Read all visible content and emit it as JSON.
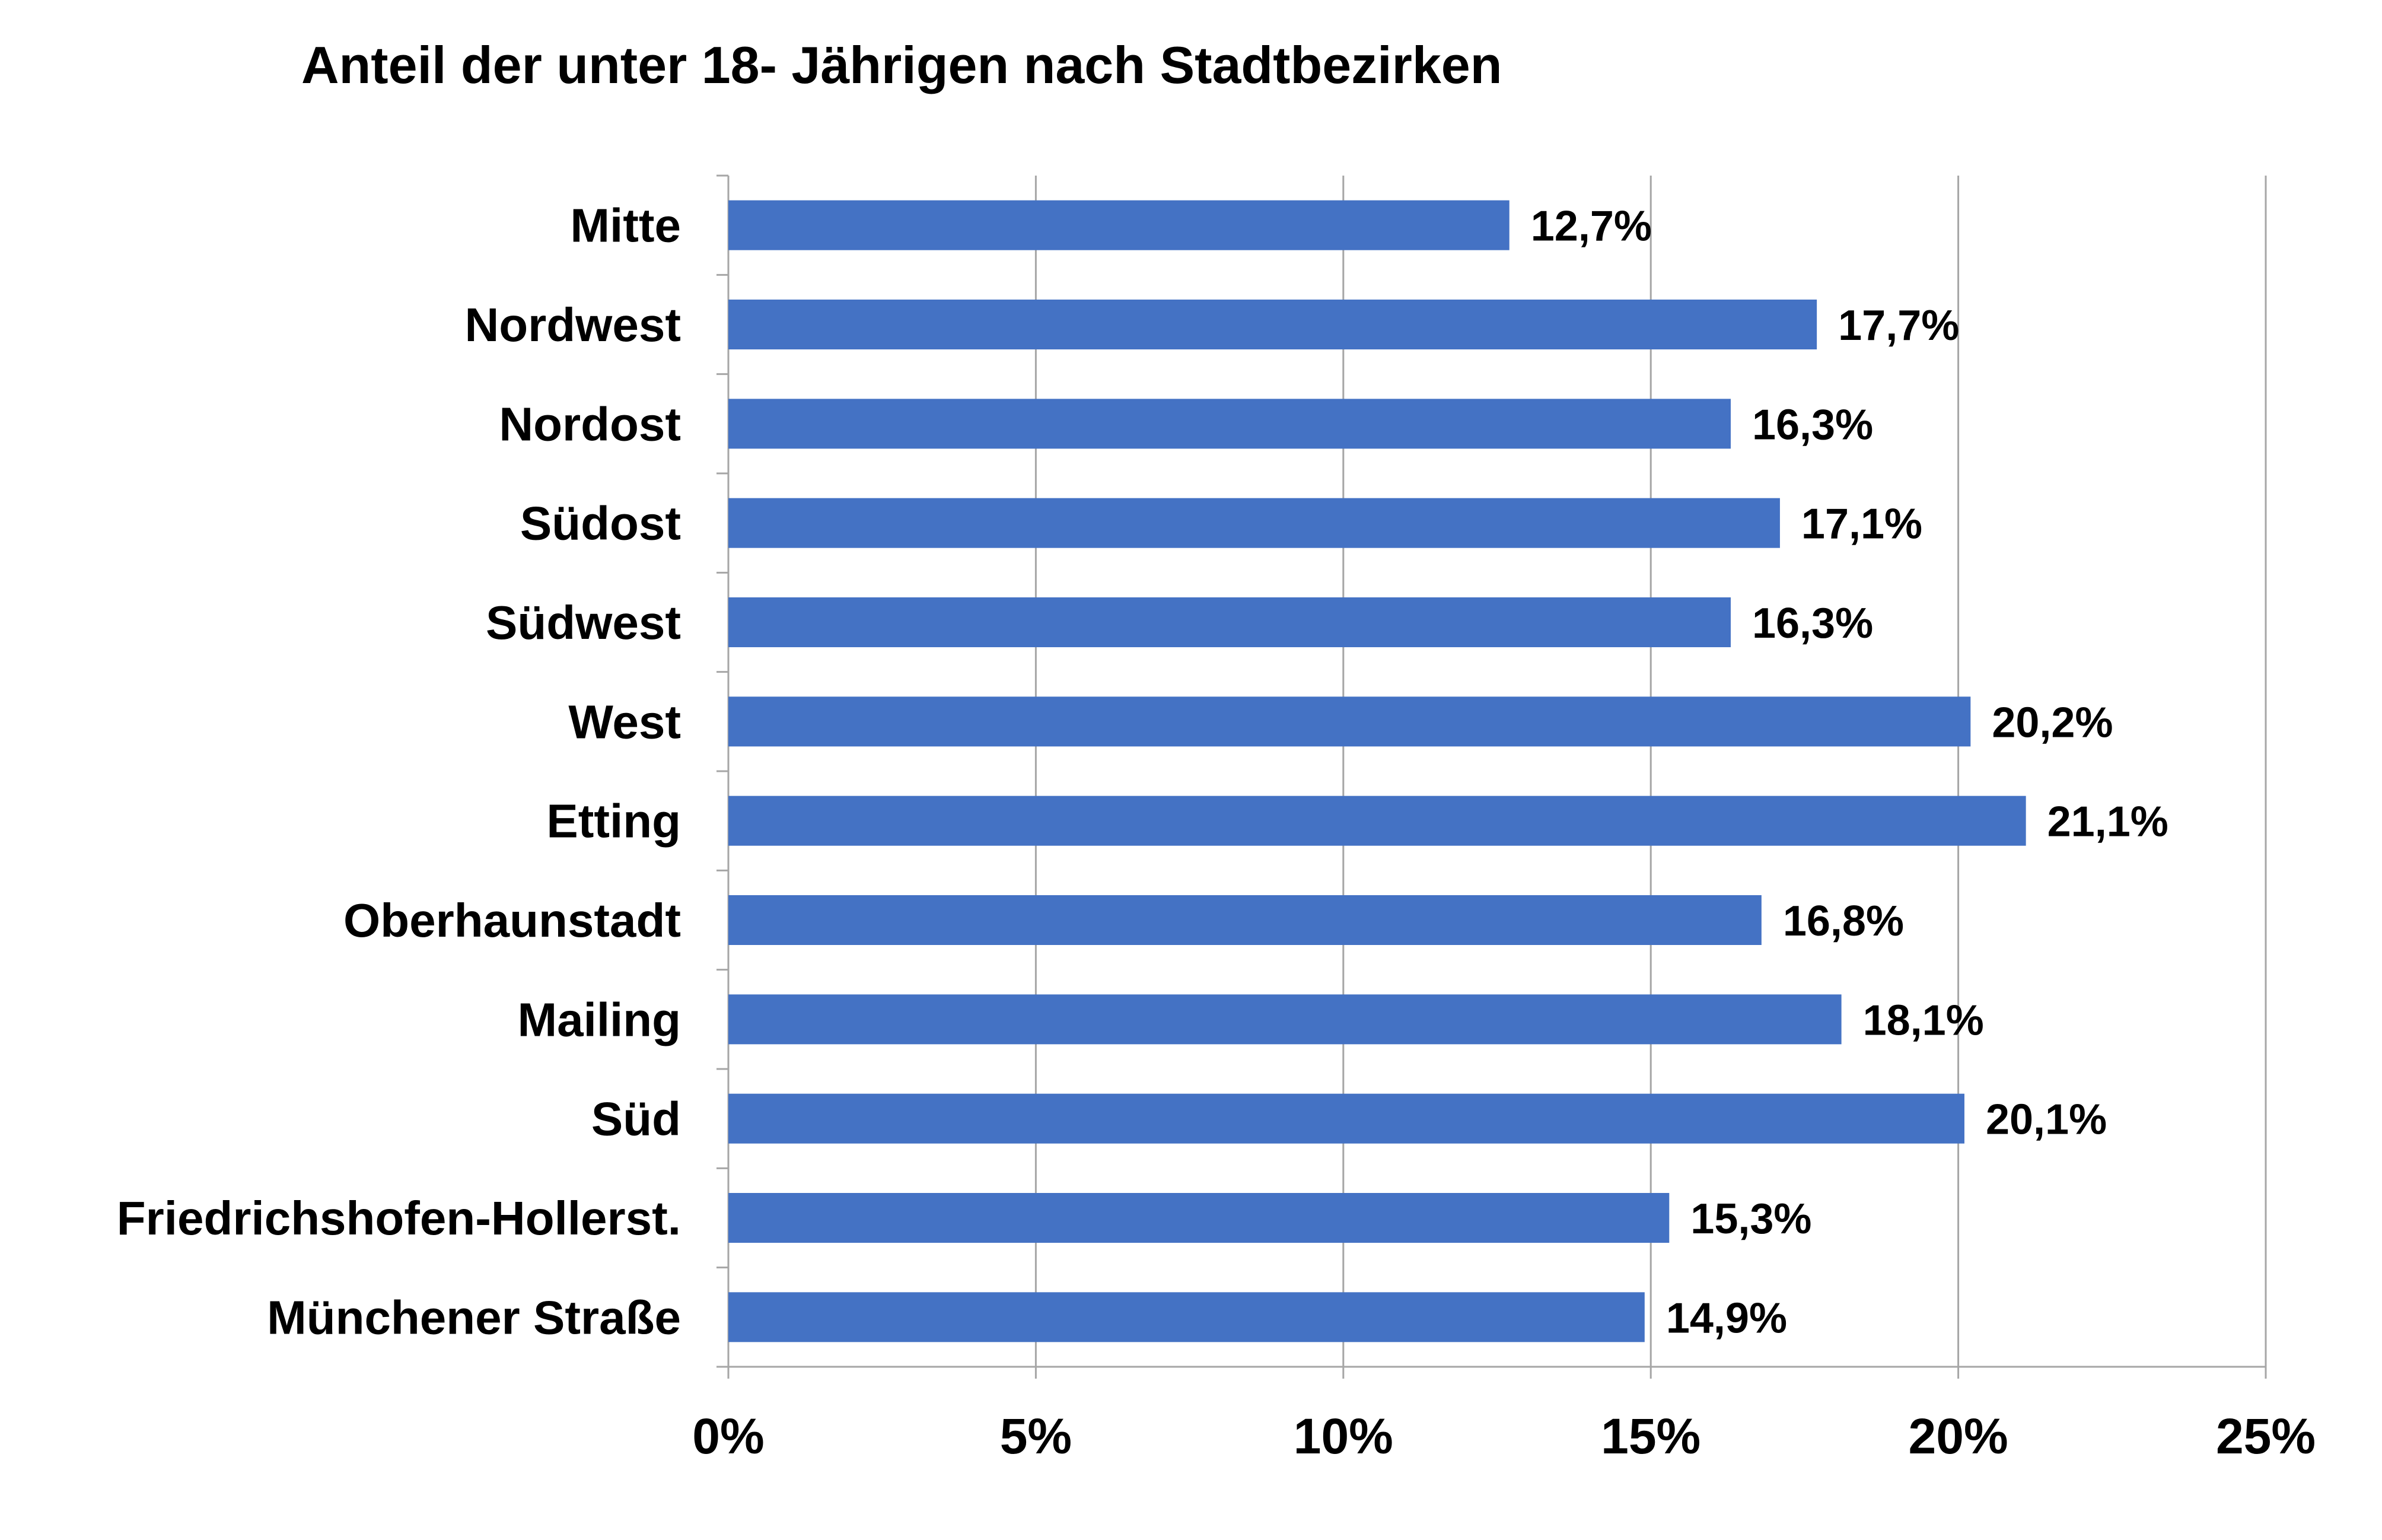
{
  "chart_data": {
    "type": "bar",
    "orientation": "horizontal",
    "title": "Anteil der unter 18- Jährigen nach Stadtbezirken",
    "categories": [
      "Mitte",
      "Nordwest",
      "Nordost",
      "Südost",
      "Südwest",
      "West",
      "Etting",
      "Oberhaunstadt",
      "Mailing",
      "Süd",
      "Friedrichshofen-Hollerst.",
      "Münchener Straße"
    ],
    "values": [
      12.7,
      17.7,
      16.3,
      17.1,
      16.3,
      20.2,
      21.1,
      16.8,
      18.1,
      20.1,
      15.3,
      14.9
    ],
    "value_labels": [
      "12,7%",
      "17,7%",
      "16,3%",
      "17,1%",
      "16,3%",
      "20,2%",
      "21,1%",
      "16,8%",
      "18,1%",
      "20,1%",
      "15,3%",
      "14,9%"
    ],
    "xlim": [
      0,
      25
    ],
    "x_ticks": [
      0,
      5,
      10,
      15,
      20,
      25
    ],
    "x_tick_labels": [
      "0%",
      "5%",
      "10%",
      "15%",
      "20%",
      "25%"
    ],
    "xlabel": "",
    "ylabel": "",
    "grid": true,
    "legend": "none",
    "bar_color": "#4472c4"
  }
}
